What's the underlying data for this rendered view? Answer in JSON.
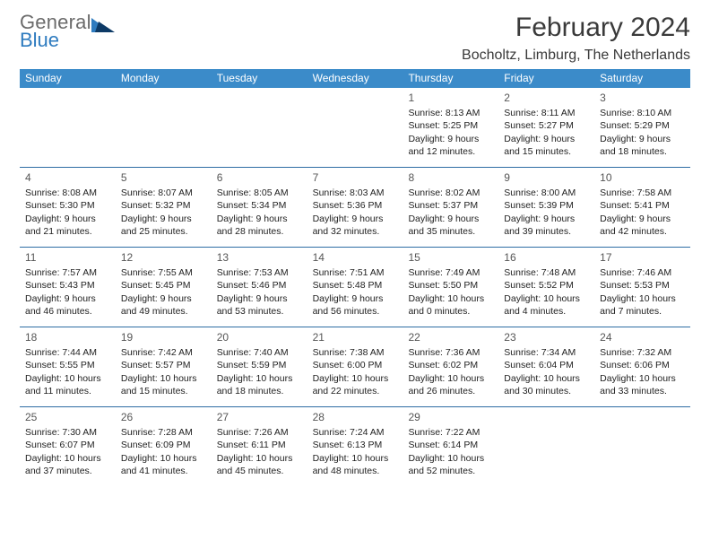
{
  "brand": {
    "general": "General",
    "blue": "Blue"
  },
  "title": {
    "month": "February 2024",
    "location": "Bocholtz, Limburg, The Netherlands"
  },
  "colors": {
    "header_bg": "#3b8bc9",
    "header_text": "#ffffff",
    "row_border": "#2e6da4",
    "body_text": "#222222",
    "daynum_text": "#555555",
    "logo_gray": "#6b6b6b",
    "logo_blue": "#2e7bbf",
    "page_bg": "#ffffff"
  },
  "typography": {
    "month_title_pt": 30,
    "location_pt": 16,
    "weekday_pt": 12,
    "daynum_pt": 12,
    "cell_pt": 10.5,
    "logo_pt": 22
  },
  "weekdays": [
    "Sunday",
    "Monday",
    "Tuesday",
    "Wednesday",
    "Thursday",
    "Friday",
    "Saturday"
  ],
  "weeks": [
    [
      null,
      null,
      null,
      null,
      {
        "n": "1",
        "sr": "Sunrise: 8:13 AM",
        "ss": "Sunset: 5:25 PM",
        "dl1": "Daylight: 9 hours",
        "dl2": "and 12 minutes."
      },
      {
        "n": "2",
        "sr": "Sunrise: 8:11 AM",
        "ss": "Sunset: 5:27 PM",
        "dl1": "Daylight: 9 hours",
        "dl2": "and 15 minutes."
      },
      {
        "n": "3",
        "sr": "Sunrise: 8:10 AM",
        "ss": "Sunset: 5:29 PM",
        "dl1": "Daylight: 9 hours",
        "dl2": "and 18 minutes."
      }
    ],
    [
      {
        "n": "4",
        "sr": "Sunrise: 8:08 AM",
        "ss": "Sunset: 5:30 PM",
        "dl1": "Daylight: 9 hours",
        "dl2": "and 21 minutes."
      },
      {
        "n": "5",
        "sr": "Sunrise: 8:07 AM",
        "ss": "Sunset: 5:32 PM",
        "dl1": "Daylight: 9 hours",
        "dl2": "and 25 minutes."
      },
      {
        "n": "6",
        "sr": "Sunrise: 8:05 AM",
        "ss": "Sunset: 5:34 PM",
        "dl1": "Daylight: 9 hours",
        "dl2": "and 28 minutes."
      },
      {
        "n": "7",
        "sr": "Sunrise: 8:03 AM",
        "ss": "Sunset: 5:36 PM",
        "dl1": "Daylight: 9 hours",
        "dl2": "and 32 minutes."
      },
      {
        "n": "8",
        "sr": "Sunrise: 8:02 AM",
        "ss": "Sunset: 5:37 PM",
        "dl1": "Daylight: 9 hours",
        "dl2": "and 35 minutes."
      },
      {
        "n": "9",
        "sr": "Sunrise: 8:00 AM",
        "ss": "Sunset: 5:39 PM",
        "dl1": "Daylight: 9 hours",
        "dl2": "and 39 minutes."
      },
      {
        "n": "10",
        "sr": "Sunrise: 7:58 AM",
        "ss": "Sunset: 5:41 PM",
        "dl1": "Daylight: 9 hours",
        "dl2": "and 42 minutes."
      }
    ],
    [
      {
        "n": "11",
        "sr": "Sunrise: 7:57 AM",
        "ss": "Sunset: 5:43 PM",
        "dl1": "Daylight: 9 hours",
        "dl2": "and 46 minutes."
      },
      {
        "n": "12",
        "sr": "Sunrise: 7:55 AM",
        "ss": "Sunset: 5:45 PM",
        "dl1": "Daylight: 9 hours",
        "dl2": "and 49 minutes."
      },
      {
        "n": "13",
        "sr": "Sunrise: 7:53 AM",
        "ss": "Sunset: 5:46 PM",
        "dl1": "Daylight: 9 hours",
        "dl2": "and 53 minutes."
      },
      {
        "n": "14",
        "sr": "Sunrise: 7:51 AM",
        "ss": "Sunset: 5:48 PM",
        "dl1": "Daylight: 9 hours",
        "dl2": "and 56 minutes."
      },
      {
        "n": "15",
        "sr": "Sunrise: 7:49 AM",
        "ss": "Sunset: 5:50 PM",
        "dl1": "Daylight: 10 hours",
        "dl2": "and 0 minutes."
      },
      {
        "n": "16",
        "sr": "Sunrise: 7:48 AM",
        "ss": "Sunset: 5:52 PM",
        "dl1": "Daylight: 10 hours",
        "dl2": "and 4 minutes."
      },
      {
        "n": "17",
        "sr": "Sunrise: 7:46 AM",
        "ss": "Sunset: 5:53 PM",
        "dl1": "Daylight: 10 hours",
        "dl2": "and 7 minutes."
      }
    ],
    [
      {
        "n": "18",
        "sr": "Sunrise: 7:44 AM",
        "ss": "Sunset: 5:55 PM",
        "dl1": "Daylight: 10 hours",
        "dl2": "and 11 minutes."
      },
      {
        "n": "19",
        "sr": "Sunrise: 7:42 AM",
        "ss": "Sunset: 5:57 PM",
        "dl1": "Daylight: 10 hours",
        "dl2": "and 15 minutes."
      },
      {
        "n": "20",
        "sr": "Sunrise: 7:40 AM",
        "ss": "Sunset: 5:59 PM",
        "dl1": "Daylight: 10 hours",
        "dl2": "and 18 minutes."
      },
      {
        "n": "21",
        "sr": "Sunrise: 7:38 AM",
        "ss": "Sunset: 6:00 PM",
        "dl1": "Daylight: 10 hours",
        "dl2": "and 22 minutes."
      },
      {
        "n": "22",
        "sr": "Sunrise: 7:36 AM",
        "ss": "Sunset: 6:02 PM",
        "dl1": "Daylight: 10 hours",
        "dl2": "and 26 minutes."
      },
      {
        "n": "23",
        "sr": "Sunrise: 7:34 AM",
        "ss": "Sunset: 6:04 PM",
        "dl1": "Daylight: 10 hours",
        "dl2": "and 30 minutes."
      },
      {
        "n": "24",
        "sr": "Sunrise: 7:32 AM",
        "ss": "Sunset: 6:06 PM",
        "dl1": "Daylight: 10 hours",
        "dl2": "and 33 minutes."
      }
    ],
    [
      {
        "n": "25",
        "sr": "Sunrise: 7:30 AM",
        "ss": "Sunset: 6:07 PM",
        "dl1": "Daylight: 10 hours",
        "dl2": "and 37 minutes."
      },
      {
        "n": "26",
        "sr": "Sunrise: 7:28 AM",
        "ss": "Sunset: 6:09 PM",
        "dl1": "Daylight: 10 hours",
        "dl2": "and 41 minutes."
      },
      {
        "n": "27",
        "sr": "Sunrise: 7:26 AM",
        "ss": "Sunset: 6:11 PM",
        "dl1": "Daylight: 10 hours",
        "dl2": "and 45 minutes."
      },
      {
        "n": "28",
        "sr": "Sunrise: 7:24 AM",
        "ss": "Sunset: 6:13 PM",
        "dl1": "Daylight: 10 hours",
        "dl2": "and 48 minutes."
      },
      {
        "n": "29",
        "sr": "Sunrise: 7:22 AM",
        "ss": "Sunset: 6:14 PM",
        "dl1": "Daylight: 10 hours",
        "dl2": "and 52 minutes."
      },
      null,
      null
    ]
  ]
}
